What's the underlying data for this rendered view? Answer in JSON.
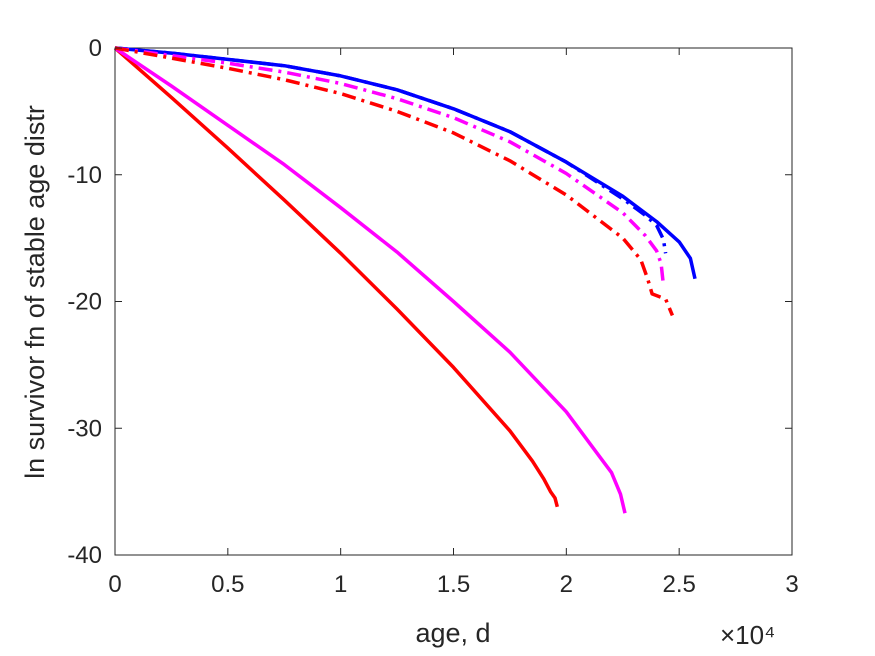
{
  "chart_data": {
    "type": "line",
    "title": "",
    "xlabel": "age, d",
    "ylabel": "ln survivor fn of stable age distr",
    "x_exponent_label": "×10⁴",
    "x_scale_factor": 10000,
    "xlim": [
      0,
      30000
    ],
    "ylim": [
      -40,
      0
    ],
    "grid": false,
    "legend": "none",
    "x_ticks": [
      0,
      5000,
      10000,
      15000,
      20000,
      25000,
      30000
    ],
    "x_tick_labels": [
      "0",
      "0.5",
      "1",
      "1.5",
      "2",
      "2.5",
      "3"
    ],
    "y_ticks": [
      0,
      -10,
      -20,
      -30,
      -40
    ],
    "y_tick_labels": [
      "0",
      "-10",
      "-20",
      "-30",
      "-40"
    ],
    "series": [
      {
        "color": "#ff0000",
        "dash": "solid",
        "x": [
          0,
          2500,
          5000,
          7500,
          10000,
          12500,
          15000,
          17500,
          18500,
          19000,
          19300,
          19500,
          19600
        ],
        "y": [
          0,
          -3.9,
          -7.9,
          -12.0,
          -16.2,
          -20.6,
          -25.2,
          -30.2,
          -32.6,
          -34.0,
          -35.0,
          -35.5,
          -36.2
        ]
      },
      {
        "color": "#ff00ff",
        "dash": "solid",
        "x": [
          0,
          2500,
          5000,
          7500,
          10000,
          12500,
          15000,
          17500,
          20000,
          21500,
          22000,
          22400,
          22600
        ],
        "y": [
          0,
          -3.0,
          -6.1,
          -9.2,
          -12.6,
          -16.1,
          -20.0,
          -24.0,
          -28.7,
          -32.3,
          -33.5,
          -35.2,
          -36.7
        ]
      },
      {
        "color": "#0000ff",
        "dash": "solid",
        "x": [
          0,
          2500,
          5000,
          7500,
          10000,
          12500,
          15000,
          17500,
          20000,
          22500,
          24000,
          25000,
          25500,
          25700
        ],
        "y": [
          0,
          -0.4,
          -0.9,
          -1.4,
          -2.2,
          -3.3,
          -4.8,
          -6.6,
          -9.0,
          -11.7,
          -13.7,
          -15.3,
          -16.6,
          -18.2
        ]
      },
      {
        "color": "#0000ff",
        "dash": "dashdot",
        "x": [
          0,
          2500,
          5000,
          7500,
          10000,
          12500,
          15000,
          17500,
          20000,
          22500,
          23500,
          24000,
          24300,
          24400
        ],
        "y": [
          0,
          -0.4,
          -0.9,
          -1.4,
          -2.2,
          -3.3,
          -4.8,
          -6.6,
          -9.0,
          -11.9,
          -13.2,
          -14.0,
          -15.1,
          -16.2
        ]
      },
      {
        "color": "#ff00ff",
        "dash": "dashdot",
        "x": [
          0,
          2500,
          5000,
          7500,
          10000,
          12500,
          15000,
          17500,
          20000,
          22500,
          23500,
          24000,
          24200,
          24300
        ],
        "y": [
          0,
          -0.6,
          -1.2,
          -1.9,
          -2.8,
          -4.0,
          -5.5,
          -7.4,
          -9.9,
          -13.0,
          -14.8,
          -16.0,
          -17.0,
          -18.7
        ]
      },
      {
        "color": "#ff0000",
        "dash": "dashdot",
        "x": [
          0,
          2500,
          5000,
          7500,
          10000,
          12500,
          15000,
          17500,
          20000,
          22500,
          23300,
          23600,
          23800,
          24400,
          24700
        ],
        "y": [
          0,
          -0.8,
          -1.6,
          -2.5,
          -3.6,
          -5.0,
          -6.7,
          -8.9,
          -11.6,
          -15.0,
          -16.7,
          -18.2,
          -19.4,
          -19.8,
          -21.1
        ]
      }
    ]
  }
}
